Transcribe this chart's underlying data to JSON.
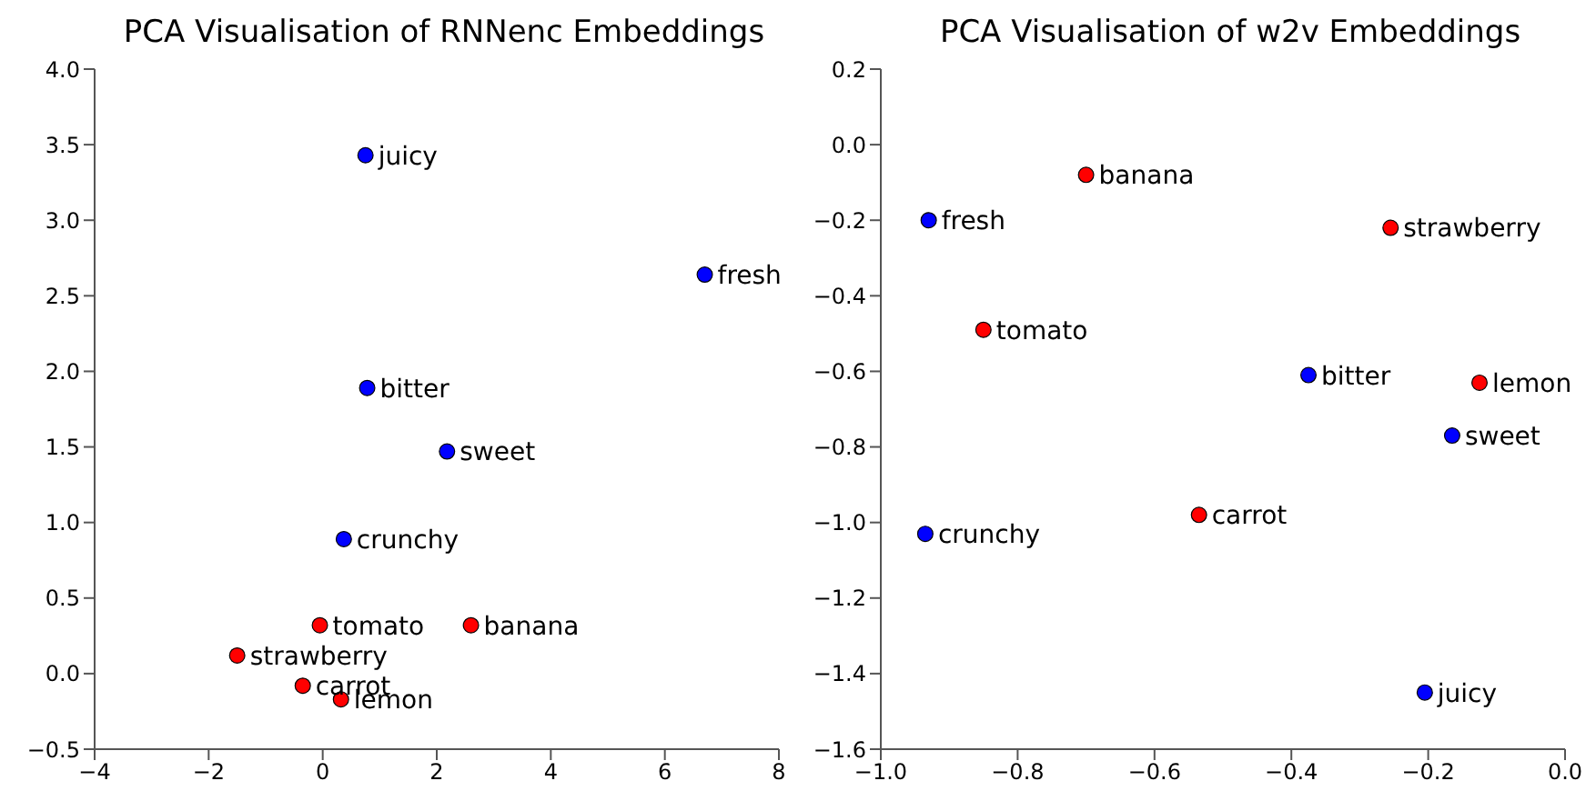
{
  "chart_data": [
    {
      "type": "scatter",
      "title": "PCA Visualisation of RNNenc Embeddings",
      "marker": "circle",
      "grid": false,
      "legend": false,
      "xlim": [
        -4,
        8
      ],
      "xticks": [
        {
          "value": -4,
          "label": "−4"
        },
        {
          "value": -2,
          "label": "−2"
        },
        0,
        2,
        4,
        6,
        8
      ],
      "ylim": [
        -0.5,
        4.0
      ],
      "yticks": [
        {
          "value": -0.5,
          "label": "−0.5"
        },
        {
          "value": 0,
          "label": "0.0"
        },
        0.5,
        {
          "value": 1,
          "label": "1.0"
        },
        1.5,
        {
          "value": 2,
          "label": "2.0"
        },
        2.5,
        {
          "value": 3,
          "label": "3.0"
        },
        3.5,
        {
          "value": 4,
          "label": "4.0"
        }
      ],
      "series": [
        {
          "color": "#0000ff",
          "x": [
            0.75,
            6.7,
            0.78,
            2.18,
            0.37
          ],
          "values": [
            3.43,
            2.64,
            1.89,
            1.47,
            0.89
          ]
        },
        {
          "color": "#ff0000",
          "x": [
            -0.05,
            2.6,
            -1.5,
            -0.35,
            0.32
          ],
          "values": [
            0.32,
            0.32,
            0.12,
            -0.08,
            -0.17
          ]
        }
      ],
      "annotations": [
        {
          "text": "juicy",
          "x": 0.75,
          "y": 3.43
        },
        {
          "text": "fresh",
          "x": 6.7,
          "y": 2.64
        },
        {
          "text": "bitter",
          "x": 0.78,
          "y": 1.89
        },
        {
          "text": "sweet",
          "x": 2.18,
          "y": 1.47
        },
        {
          "text": "crunchy",
          "x": 0.37,
          "y": 0.89
        },
        {
          "text": "tomato",
          "x": -0.05,
          "y": 0.32
        },
        {
          "text": "banana",
          "x": 2.6,
          "y": 0.32
        },
        {
          "text": "strawberry",
          "x": -1.5,
          "y": 0.12
        },
        {
          "text": "carrot",
          "x": -0.35,
          "y": -0.08
        },
        {
          "text": "lemon",
          "x": 0.32,
          "y": -0.17
        }
      ]
    },
    {
      "type": "scatter",
      "title": "PCA Visualisation of w2v Embeddings",
      "marker": "circle",
      "grid": false,
      "legend": false,
      "xlim": [
        -1.0,
        0.0
      ],
      "xticks": [
        {
          "value": -1,
          "label": "−1.0"
        },
        {
          "value": -0.8,
          "label": "−0.8"
        },
        {
          "value": -0.6,
          "label": "−0.6"
        },
        {
          "value": -0.4,
          "label": "−0.4"
        },
        {
          "value": -0.2,
          "label": "−0.2"
        },
        {
          "value": 0,
          "label": "0.0"
        }
      ],
      "ylim": [
        -1.6,
        0.2
      ],
      "yticks": [
        {
          "value": -1.6,
          "label": "−1.6"
        },
        {
          "value": -1.4,
          "label": "−1.4"
        },
        {
          "value": -1.2,
          "label": "−1.2"
        },
        {
          "value": -1,
          "label": "−1.0"
        },
        {
          "value": -0.8,
          "label": "−0.8"
        },
        {
          "value": -0.6,
          "label": "−0.6"
        },
        {
          "value": -0.4,
          "label": "−0.4"
        },
        {
          "value": -0.2,
          "label": "−0.2"
        },
        {
          "value": 0,
          "label": "0.0"
        },
        0.2
      ],
      "series": [
        {
          "color": "#0000ff",
          "x": [
            -0.93,
            -0.375,
            -0.165,
            -0.935,
            -0.205
          ],
          "values": [
            -0.2,
            -0.61,
            -0.77,
            -1.03,
            -1.45
          ]
        },
        {
          "color": "#ff0000",
          "x": [
            -0.7,
            -0.255,
            -0.85,
            -0.125,
            -0.535
          ],
          "values": [
            -0.08,
            -0.22,
            -0.49,
            -0.63,
            -0.98
          ]
        }
      ],
      "annotations": [
        {
          "text": "fresh",
          "x": -0.93,
          "y": -0.2
        },
        {
          "text": "bitter",
          "x": -0.375,
          "y": -0.61
        },
        {
          "text": "sweet",
          "x": -0.165,
          "y": -0.77
        },
        {
          "text": "crunchy",
          "x": -0.935,
          "y": -1.03
        },
        {
          "text": "juicy",
          "x": -0.205,
          "y": -1.45
        },
        {
          "text": "banana",
          "x": -0.7,
          "y": -0.08
        },
        {
          "text": "strawberry",
          "x": -0.255,
          "y": -0.22
        },
        {
          "text": "tomato",
          "x": -0.85,
          "y": -0.49
        },
        {
          "text": "lemon",
          "x": -0.125,
          "y": -0.63
        },
        {
          "text": "carrot",
          "x": -0.535,
          "y": -0.98
        }
      ]
    }
  ]
}
